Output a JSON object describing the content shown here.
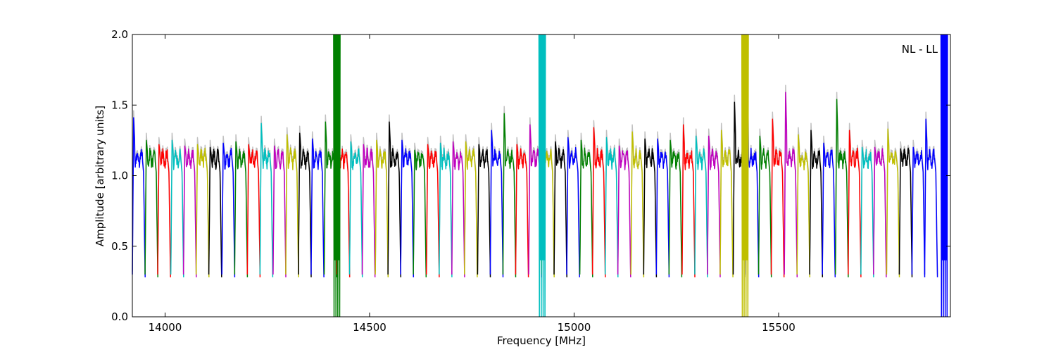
{
  "chart_data": {
    "type": "line",
    "title": "",
    "xlabel": "Frequency [MHz]",
    "ylabel": "Amplitude [arbitrary units]",
    "xlim": [
      13920,
      15920
    ],
    "ylim": [
      0.0,
      2.0
    ],
    "x_ticks": [
      14000,
      14500,
      15000,
      15500
    ],
    "y_ticks": [
      0.0,
      0.5,
      1.0,
      1.5,
      2.0
    ],
    "x_tick_labels": [
      "14000",
      "14500",
      "15000",
      "15500"
    ],
    "y_tick_labels": [
      "0.0",
      "0.5",
      "1.0",
      "1.5",
      "2.0"
    ],
    "grid": false,
    "annotation": "NL - LL",
    "annotation_position": "top-right",
    "background_trace_color": "#c0c0c0",
    "subband_width_mhz": 31.25,
    "color_cycle": [
      "#0000ff",
      "#008000",
      "#ff0000",
      "#00bfbf",
      "#bf00bf",
      "#bfbf00",
      "#000000"
    ],
    "spikes": [
      {
        "x": 14420,
        "color": "#008000",
        "min": 0.0,
        "max": 2.0
      },
      {
        "x": 14922,
        "color": "#00bfbf",
        "min": 0.0,
        "max": 2.0
      },
      {
        "x": 15418,
        "color": "#bfbf00",
        "min": 0.0,
        "max": 2.0
      },
      {
        "x": 15905,
        "color": "#0000ff",
        "min": 0.0,
        "max": 2.0
      }
    ],
    "series": [
      {
        "x0": 13920,
        "peak": 1.41,
        "color": "#0000ff"
      },
      {
        "x0": 13951,
        "peak": 1.25,
        "color": "#008000"
      },
      {
        "x0": 13982,
        "peak": 1.22,
        "color": "#ff0000"
      },
      {
        "x0": 14014,
        "peak": 1.25,
        "color": "#00bfbf"
      },
      {
        "x0": 14045,
        "peak": 1.21,
        "color": "#bf00bf"
      },
      {
        "x0": 14076,
        "peak": 1.22,
        "color": "#bfbf00"
      },
      {
        "x0": 14107,
        "peak": 1.2,
        "color": "#000000"
      },
      {
        "x0": 14139,
        "peak": 1.23,
        "color": "#0000ff"
      },
      {
        "x0": 14170,
        "peak": 1.24,
        "color": "#008000"
      },
      {
        "x0": 14201,
        "peak": 1.22,
        "color": "#ff0000"
      },
      {
        "x0": 14232,
        "peak": 1.37,
        "color": "#00bfbf"
      },
      {
        "x0": 14264,
        "peak": 1.21,
        "color": "#bf00bf"
      },
      {
        "x0": 14295,
        "peak": 1.29,
        "color": "#bfbf00"
      },
      {
        "x0": 14326,
        "peak": 1.3,
        "color": "#000000"
      },
      {
        "x0": 14357,
        "peak": 1.26,
        "color": "#0000ff"
      },
      {
        "x0": 14389,
        "peak": 1.38,
        "color": "#008000"
      },
      {
        "x0": 14420,
        "peak": 1.34,
        "color": "#ff0000"
      },
      {
        "x0": 14451,
        "peak": 1.24,
        "color": "#00bfbf"
      },
      {
        "x0": 14482,
        "peak": 1.22,
        "color": "#bf00bf"
      },
      {
        "x0": 14514,
        "peak": 1.25,
        "color": "#bfbf00"
      },
      {
        "x0": 14545,
        "peak": 1.38,
        "color": "#000000"
      },
      {
        "x0": 14576,
        "peak": 1.25,
        "color": "#0000ff"
      },
      {
        "x0": 14607,
        "peak": 1.18,
        "color": "#008000"
      },
      {
        "x0": 14639,
        "peak": 1.22,
        "color": "#ff0000"
      },
      {
        "x0": 14670,
        "peak": 1.23,
        "color": "#00bfbf"
      },
      {
        "x0": 14701,
        "peak": 1.24,
        "color": "#bf00bf"
      },
      {
        "x0": 14732,
        "peak": 1.24,
        "color": "#bfbf00"
      },
      {
        "x0": 14764,
        "peak": 1.22,
        "color": "#000000"
      },
      {
        "x0": 14795,
        "peak": 1.32,
        "color": "#0000ff"
      },
      {
        "x0": 14826,
        "peak": 1.44,
        "color": "#008000"
      },
      {
        "x0": 14857,
        "peak": 1.22,
        "color": "#ff0000"
      },
      {
        "x0": 14889,
        "peak": 1.36,
        "color": "#bf00bf"
      },
      {
        "x0": 14920,
        "peak": 1.4,
        "color": "#bfbf00"
      },
      {
        "x0": 14951,
        "peak": 1.24,
        "color": "#000000"
      },
      {
        "x0": 14982,
        "peak": 1.27,
        "color": "#0000ff"
      },
      {
        "x0": 15014,
        "peak": 1.25,
        "color": "#008000"
      },
      {
        "x0": 15045,
        "peak": 1.34,
        "color": "#ff0000"
      },
      {
        "x0": 15076,
        "peak": 1.27,
        "color": "#00bfbf"
      },
      {
        "x0": 15107,
        "peak": 1.21,
        "color": "#bf00bf"
      },
      {
        "x0": 15139,
        "peak": 1.31,
        "color": "#bfbf00"
      },
      {
        "x0": 15170,
        "peak": 1.26,
        "color": "#000000"
      },
      {
        "x0": 15201,
        "peak": 1.26,
        "color": "#0000ff"
      },
      {
        "x0": 15232,
        "peak": 1.25,
        "color": "#008000"
      },
      {
        "x0": 15264,
        "peak": 1.36,
        "color": "#ff0000"
      },
      {
        "x0": 15295,
        "peak": 1.28,
        "color": "#00bfbf"
      },
      {
        "x0": 15326,
        "peak": 1.28,
        "color": "#bf00bf"
      },
      {
        "x0": 15357,
        "peak": 1.32,
        "color": "#bfbf00"
      },
      {
        "x0": 15389,
        "peak": 1.52,
        "color": "#000000"
      },
      {
        "x0": 15420,
        "peak": 1.86,
        "color": "#0000ff"
      },
      {
        "x0": 15451,
        "peak": 1.28,
        "color": "#008000"
      },
      {
        "x0": 15482,
        "peak": 1.4,
        "color": "#ff0000"
      },
      {
        "x0": 15514,
        "peak": 1.59,
        "color": "#bf00bf"
      },
      {
        "x0": 15545,
        "peak": 1.29,
        "color": "#bfbf00"
      },
      {
        "x0": 15576,
        "peak": 1.32,
        "color": "#000000"
      },
      {
        "x0": 15607,
        "peak": 1.23,
        "color": "#0000ff"
      },
      {
        "x0": 15639,
        "peak": 1.54,
        "color": "#008000"
      },
      {
        "x0": 15670,
        "peak": 1.32,
        "color": "#ff0000"
      },
      {
        "x0": 15701,
        "peak": 1.2,
        "color": "#00bfbf"
      },
      {
        "x0": 15732,
        "peak": 1.2,
        "color": "#bf00bf"
      },
      {
        "x0": 15764,
        "peak": 1.33,
        "color": "#bfbf00"
      },
      {
        "x0": 15795,
        "peak": 1.19,
        "color": "#000000"
      },
      {
        "x0": 15826,
        "peak": 1.2,
        "color": "#0000ff"
      },
      {
        "x0": 15857,
        "peak": 1.4,
        "color": "#0000ff"
      }
    ]
  }
}
